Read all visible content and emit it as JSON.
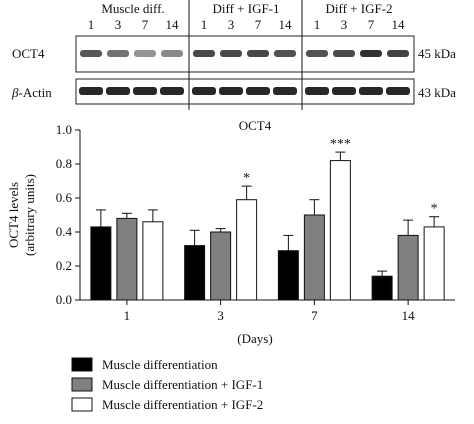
{
  "blot": {
    "group_headers": [
      "Muscle diff.",
      "Diff + IGF-1",
      "Diff + IGF-2"
    ],
    "lane_days": [
      "1",
      "3",
      "7",
      "14"
    ],
    "rows": [
      {
        "label": "OCT4",
        "size": "45 kDa"
      },
      {
        "label_greek": "β",
        "label_rest": "-Actin",
        "size": "43 kDa"
      }
    ],
    "oct4_intensity": [
      [
        0.72,
        0.55,
        0.35,
        0.4
      ],
      [
        0.8,
        0.8,
        0.82,
        0.75
      ],
      [
        0.75,
        0.8,
        0.95,
        0.85
      ]
    ],
    "actin_intensity": [
      [
        0.95,
        0.95,
        0.95,
        0.95
      ],
      [
        0.95,
        0.95,
        0.95,
        0.95
      ],
      [
        0.95,
        0.95,
        0.95,
        0.95
      ]
    ]
  },
  "chart_data": {
    "type": "bar",
    "title": "OCT4",
    "xlabel": "(Days)",
    "ylabel_line1": "OCT4 levels",
    "ylabel_line2": "(arbitrary units)",
    "categories": [
      "1",
      "3",
      "7",
      "14"
    ],
    "ylim": [
      0,
      1.0
    ],
    "yticks": [
      "0.0",
      "0.2",
      "0.4",
      "0.6",
      "0.8",
      "1.0"
    ],
    "series": [
      {
        "name": "Muscle differentiation",
        "color": "#000000",
        "values": [
          0.43,
          0.32,
          0.29,
          0.14
        ],
        "errors": [
          0.1,
          0.09,
          0.09,
          0.03
        ]
      },
      {
        "name": "Muscle differentiation + IGF-1",
        "color": "#808080",
        "values": [
          0.48,
          0.4,
          0.5,
          0.38
        ],
        "errors": [
          0.03,
          0.02,
          0.09,
          0.09
        ]
      },
      {
        "name": "Muscle differentiation + IGF-2",
        "color": "#ffffff",
        "values": [
          0.46,
          0.59,
          0.82,
          0.43
        ],
        "errors": [
          0.07,
          0.08,
          0.05,
          0.06
        ]
      }
    ],
    "annotations": [
      {
        "category": "3",
        "series": 2,
        "text": "*"
      },
      {
        "category": "7",
        "series": 2,
        "text": "***"
      },
      {
        "category": "14",
        "series": 2,
        "text": "*"
      }
    ],
    "legend_position": "bottom-left"
  }
}
